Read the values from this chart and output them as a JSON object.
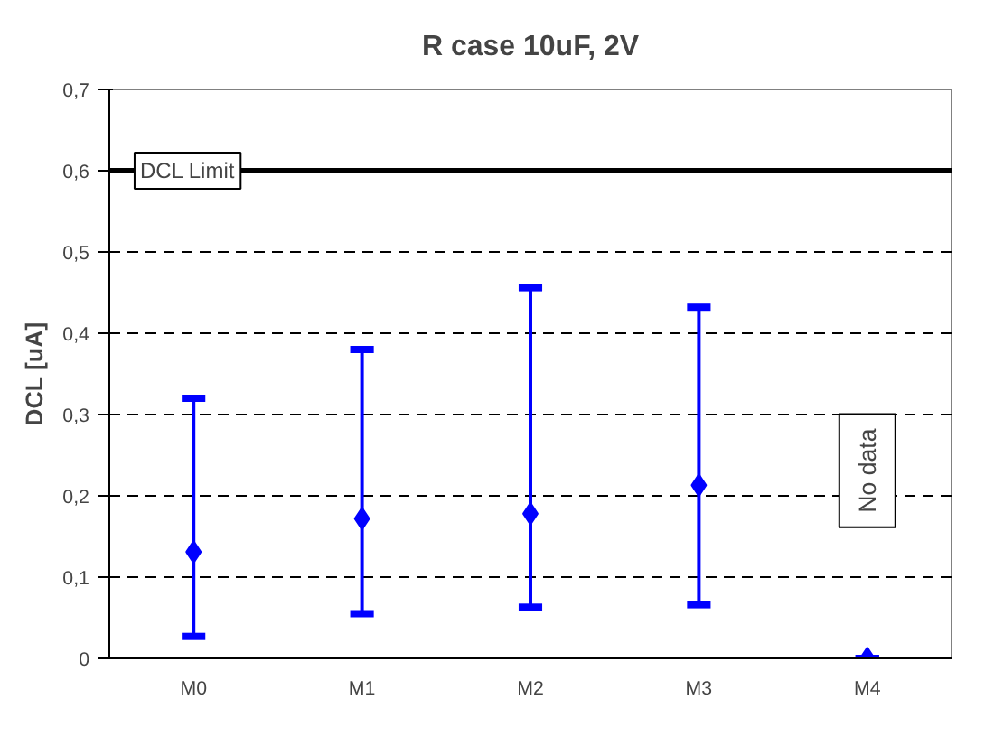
{
  "chart_data": {
    "type": "scatter",
    "title": "R case 10uF, 2V",
    "ylabel": "DCL [uA]",
    "categories": [
      "M0",
      "M1",
      "M2",
      "M3",
      "M4"
    ],
    "series": [
      {
        "color": "#0000ff",
        "values": [
          0.131,
          0.172,
          0.178,
          0.213,
          0
        ],
        "errors": [
          [
            0.027,
            0.32
          ],
          [
            0.055,
            0.38
          ],
          [
            0.063,
            0.456
          ],
          [
            0.066,
            0.432
          ],
          [
            0,
            0
          ]
        ]
      }
    ],
    "marker": "diamond",
    "ylim": [
      0,
      0.7
    ],
    "yticks": [
      {
        "value": 0,
        "label": "0"
      },
      {
        "value": 0.1,
        "label": "0,1"
      },
      {
        "value": 0.2,
        "label": "0,2"
      },
      {
        "value": 0.3,
        "label": "0,3"
      },
      {
        "value": 0.4,
        "label": "0,4"
      },
      {
        "value": 0.5,
        "label": "0,5"
      },
      {
        "value": 0.6,
        "label": "0,6"
      },
      {
        "value": 0.7,
        "label": "0,7"
      }
    ],
    "grid": "y",
    "ref_lines": [
      {
        "axis": "y",
        "value": 0.6,
        "label": "DCL Limit",
        "color": "#000000"
      }
    ],
    "annotations": [
      "No data"
    ]
  }
}
